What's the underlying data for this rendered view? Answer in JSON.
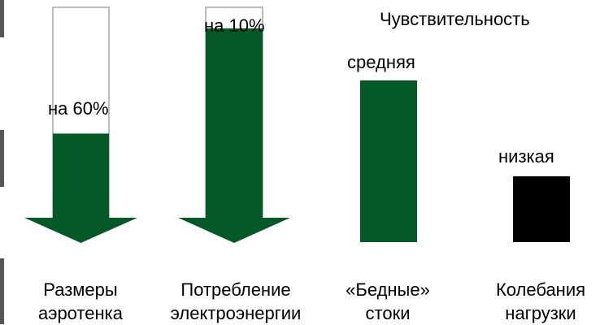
{
  "chart_data": {
    "type": "bar",
    "legend_title": "Чувствительность",
    "categories": [
      {
        "line1": "Размеры",
        "line2": "аэротенка"
      },
      {
        "line1": "Потребление",
        "line2": "электроэнергии"
      },
      {
        "line1": "«Бедные»",
        "line2": "стоки"
      },
      {
        "line1": "Колебания",
        "line2": "нагрузки"
      }
    ],
    "reductions": [
      {
        "label": "на 60%",
        "value": 60
      },
      {
        "label": "на 10%",
        "value": 10
      }
    ],
    "sensitivity": [
      {
        "label": "средняя",
        "level": "medium",
        "color": "#045a27"
      },
      {
        "label": "низкая",
        "level": "low",
        "color": "#000000"
      }
    ],
    "colors": {
      "fill": "#045a27",
      "outline": "#a6a6a6"
    }
  }
}
